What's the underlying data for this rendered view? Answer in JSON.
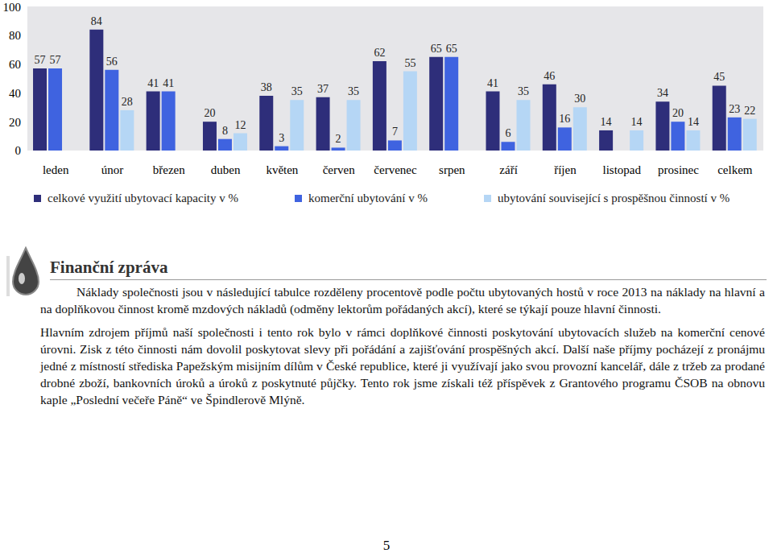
{
  "chart_data": {
    "type": "bar",
    "categories": [
      "leden",
      "únor",
      "březen",
      "duben",
      "květen",
      "červen",
      "červenec",
      "srpen",
      "září",
      "říjen",
      "listopad",
      "prosinec",
      "celkem"
    ],
    "series": [
      {
        "name": "celkové využití ubytovací kapacity v %",
        "color": "#2e2e7a",
        "values": [
          57,
          84,
          41,
          20,
          38,
          37,
          62,
          65,
          41,
          46,
          14,
          34,
          45
        ]
      },
      {
        "name": "komerční ubytování v %",
        "color": "#3f63e0",
        "values": [
          57,
          56,
          41,
          8,
          3,
          2,
          7,
          65,
          6,
          16,
          0,
          20,
          23
        ]
      },
      {
        "name": "ubytování související s prospěšnou činností v %",
        "color": "#b5d6f5",
        "values": [
          0,
          28,
          0,
          12,
          35,
          35,
          55,
          0,
          35,
          30,
          14,
          14,
          22
        ]
      }
    ],
    "ylim": [
      0,
      100
    ],
    "yticks": [
      0,
      20,
      40,
      60,
      80,
      100
    ],
    "grid": false,
    "data_labels": true,
    "legend": "bottom"
  },
  "document": {
    "header": {
      "title": "Finanční zpráva"
    },
    "paragraphs": [
      "Náklady společnosti jsou v následující tabulce rozděleny procentově podle počtu ubytovaných hostů v roce 2013 na náklady na hlavní a na doplňkovou činnost kromě mzdových nákladů (odměny lektorům pořádaných akcí), které se týkají pouze hlavní činnosti.",
      "Hlavním zdrojem příjmů naší společnosti i tento rok bylo v rámci doplňkové činnosti poskytování ubytovacích služeb na komerční cenové úrovni. Zisk z této činnosti nám dovolil poskytovat slevy při pořádání a zajišťování prospěšných akcí. Další naše příjmy pocházejí z pronájmu jedné z místností střediska Papežským misijním dílům v České republice, které ji využívají jako svou provozní kancelář, dále z tržeb za prodané drobné zboží, bankovních úroků a úroků z poskytnuté půjčky. Tento rok jsme získali též příspěvek z Grantového programu ČSOB na obnovu kaple „Poslední večeře Páně“ ve Špindlerově Mlýně."
    ],
    "page_number": "5"
  }
}
